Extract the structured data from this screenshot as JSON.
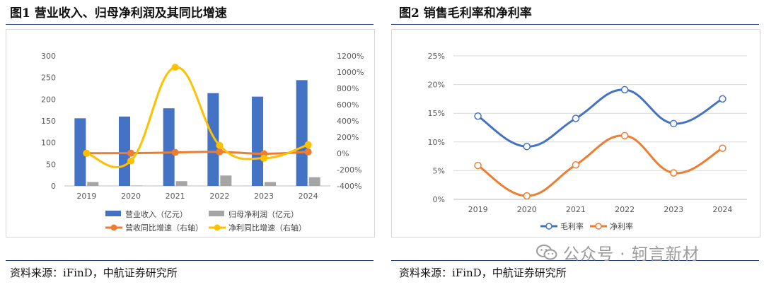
{
  "figure1": {
    "title": "图1  营业收入、归母净利润及其同比增速",
    "source": "资料来源：iFinD，中航证券研究所"
  },
  "figure2": {
    "title": "图2  销售毛利率和净利率",
    "source": "资料来源：iFinD，中航证券研究所"
  },
  "watermark": {
    "text": "公众号 · 轲言新材",
    "icon": "wechat-icon"
  },
  "colors": {
    "blue": "#4472C4",
    "gray": "#A5A5A5",
    "orange": "#ED7D31",
    "yellow": "#FFC000",
    "rule": "#1F3D7A"
  },
  "chart_data": [
    {
      "type": "bar+line",
      "categories": [
        "2019",
        "2020",
        "2021",
        "2022",
        "2023",
        "2024"
      ],
      "y_left": {
        "ylim": [
          0,
          300
        ],
        "ticks": [
          0,
          50,
          100,
          150,
          200,
          250,
          300
        ],
        "tick_labels": [
          "0",
          "50",
          "100",
          "150",
          "200",
          "250",
          "300"
        ]
      },
      "y_right": {
        "ylim": [
          -400,
          1200
        ],
        "ticks": [
          -400,
          -200,
          0,
          200,
          400,
          600,
          800,
          1000,
          1200
        ],
        "tick_labels": [
          "-400%",
          "-200%",
          "0%",
          "200%",
          "400%",
          "600%",
          "800%",
          "1000%",
          "1200%"
        ]
      },
      "series": [
        {
          "name": "营业收入（亿元）",
          "kind": "bar",
          "axis": "left",
          "color": "#4472C4",
          "values": [
            156,
            160,
            179,
            214,
            206,
            244
          ]
        },
        {
          "name": "归母净利润（亿元）",
          "kind": "bar",
          "axis": "left",
          "color": "#A5A5A5",
          "values": [
            9,
            1,
            11,
            24,
            9,
            20
          ]
        },
        {
          "name": "营收同比增速（右轴）",
          "kind": "line",
          "axis": "right",
          "color": "#ED7D31",
          "values": [
            2,
            3,
            12,
            19,
            -4,
            18
          ]
        },
        {
          "name": "净利同比增速（右轴）",
          "kind": "line",
          "axis": "right",
          "color": "#FFC000",
          "values": [
            2,
            -92,
            1060,
            100,
            -60,
            106
          ]
        }
      ],
      "legend_position": "bottom"
    },
    {
      "type": "line",
      "categories": [
        "2019",
        "2020",
        "2021",
        "2022",
        "2023",
        "2024"
      ],
      "ylim": [
        0,
        25
      ],
      "ticks": [
        0,
        5,
        10,
        15,
        20,
        25
      ],
      "tick_labels": [
        "0%",
        "5%",
        "10%",
        "15%",
        "20%",
        "25%"
      ],
      "series": [
        {
          "name": "毛利率",
          "color": "#4472C4",
          "values": [
            14.5,
            9.2,
            14.1,
            19.1,
            13.2,
            17.5
          ]
        },
        {
          "name": "净利率",
          "color": "#ED7D31",
          "values": [
            5.9,
            0.6,
            6.0,
            11.1,
            4.6,
            8.9
          ]
        }
      ],
      "legend_position": "bottom"
    }
  ]
}
